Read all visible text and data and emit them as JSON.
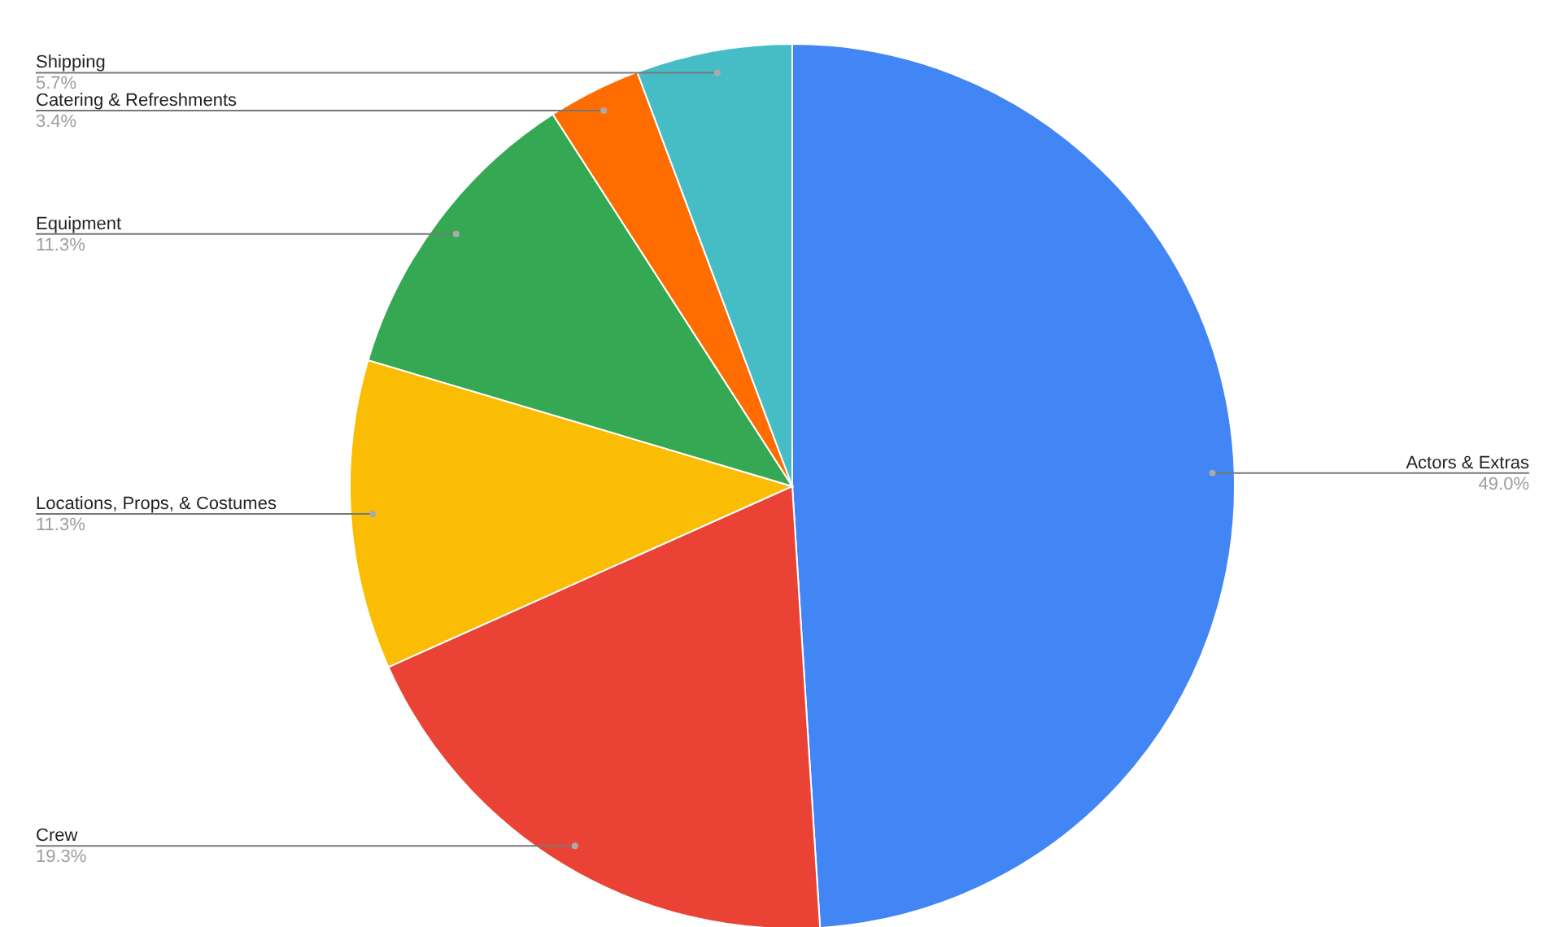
{
  "chart_data": {
    "type": "pie",
    "categories": [
      "Actors & Extras",
      "Crew",
      "Locations, Props, & Costumes",
      "Equipment",
      "Catering & Refreshments",
      "Shipping"
    ],
    "values": [
      49.0,
      19.3,
      11.3,
      11.3,
      3.4,
      5.7
    ],
    "colors": [
      "#4285f4",
      "#ea4335",
      "#fbbc04",
      "#34a853",
      "#ff6d01",
      "#46bdc6"
    ],
    "value_labels": [
      "49.0%",
      "19.3%",
      "11.3%",
      "11.3%",
      "3.4%",
      "5.7%"
    ]
  }
}
